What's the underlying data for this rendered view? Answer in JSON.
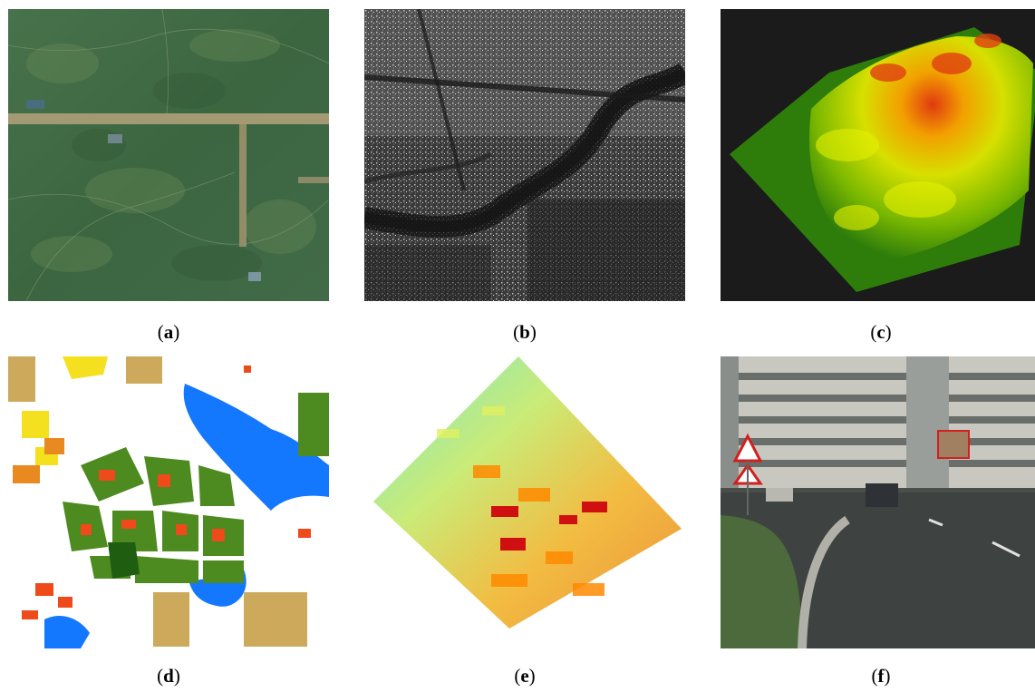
{
  "panels": [
    {
      "label": "a",
      "content": "optical satellite image"
    },
    {
      "label": "b",
      "content": "SAR image"
    },
    {
      "label": "c",
      "content": "3D elevation model"
    },
    {
      "label": "d",
      "content": "land-use map"
    },
    {
      "label": "e",
      "content": "LiDAR point cloud"
    },
    {
      "label": "f",
      "content": "street-level photograph"
    }
  ],
  "colors": {
    "forest": "#3f6b3a",
    "road": "#a39a74",
    "sar_dark": "#1a1a1a",
    "terrain_low": "#2e7d0b",
    "terrain_mid": "#d6e000",
    "terrain_high": "#e03a10",
    "landuse_green": "#4d8a1f",
    "landuse_water": "#1478ff",
    "landuse_red": "#ee4a1a",
    "landuse_yellow": "#f5e020"
  }
}
